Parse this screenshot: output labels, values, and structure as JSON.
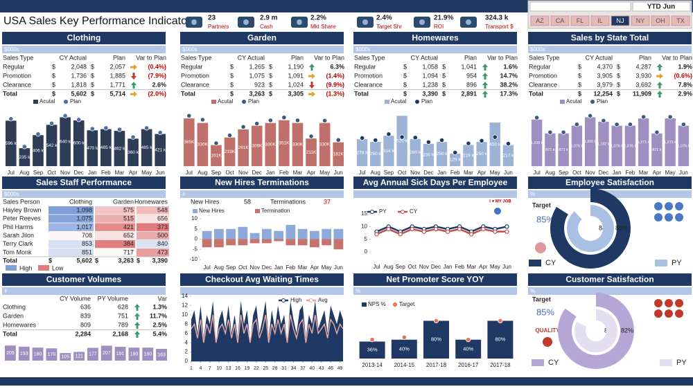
{
  "header": {
    "title": "USA Sales Key Performance Indicators"
  },
  "kpis": [
    {
      "value": "23",
      "label": "Partners"
    },
    {
      "value": "2.9 m",
      "label": "Cash"
    },
    {
      "value": "2.2%",
      "label": "Mkt Share"
    },
    {
      "value": "2.4%",
      "label": "Target Shr"
    },
    {
      "value": "21.9%",
      "label": "ROI"
    },
    {
      "value": "324.3 k",
      "label": "Transport $"
    }
  ],
  "slicer": {
    "period": "YTD Jun",
    "states": [
      "AZ",
      "CA",
      "FL",
      "IL",
      "NJ",
      "NY",
      "OH",
      "TX"
    ],
    "selected": "NJ"
  },
  "panels": [
    {
      "title": "Clothing",
      "unit": "$000s"
    },
    {
      "title": "Garden",
      "unit": "$000s"
    },
    {
      "title": "Homewares",
      "unit": "$000s"
    },
    {
      "title": "Sales by State Total",
      "unit": "$000s"
    },
    {
      "title": "Sales Staff Performance",
      "unit": "$000s"
    },
    {
      "title": "New Hires Terminations",
      "unit": "#"
    },
    {
      "title": "Avg Annual Sick Days Per Employee",
      "badge": "I ♥ MY JOB"
    },
    {
      "title": "Employee Satisfaction",
      "unit": "%"
    },
    {
      "title": "Customer Volumes",
      "unit": "#"
    },
    {
      "title": "Checkout Avg Waiting Times"
    },
    {
      "title": "Net Promoter Score YOY",
      "unit": "%"
    },
    {
      "title": "Customer Satisfaction",
      "unit": "%"
    }
  ],
  "sales_tables": [
    {
      "currency": "$",
      "columns": [
        "Sales Type",
        "CY Actual",
        "Plan",
        "Var to Plan"
      ],
      "rows": [
        [
          "Regular",
          "2,048",
          "2,057",
          "(0.4%)"
        ],
        [
          "Promotion",
          "1,736",
          "1,885",
          "(7.9%)"
        ],
        [
          "Clearance",
          "1,818",
          "1,771",
          "2.6%"
        ],
        [
          "Total",
          "5,602",
          "5,714",
          "(2.0%)"
        ]
      ]
    },
    {
      "currency": "$",
      "columns": [
        "Sales Type",
        "CY Actual",
        "Plan",
        "Var to Plan"
      ],
      "rows": [
        [
          "Regular",
          "1,265",
          "1,190",
          "6.3%"
        ],
        [
          "Promotion",
          "1,075",
          "1,091",
          "(1.4%)"
        ],
        [
          "Clearance",
          "923",
          "1,024",
          "(9.9%)"
        ],
        [
          "Total",
          "3,263",
          "3,305",
          "(1.3%)"
        ]
      ]
    },
    {
      "currency": "$",
      "columns": [
        "Sales Type",
        "CY Actual",
        "Plan",
        "Var to Plan"
      ],
      "rows": [
        [
          "Regular",
          "1,058",
          "1,041",
          "1.6%"
        ],
        [
          "Promotion",
          "1,094",
          "954",
          "14.7%"
        ],
        [
          "Clearance",
          "1,238",
          "896",
          "38.2%"
        ],
        [
          "Total",
          "3,390",
          "2,891",
          "17.3%"
        ]
      ]
    },
    {
      "currency": "$",
      "columns": [
        "Sales Type",
        "CY Actual",
        "Plan",
        "Var to Plan"
      ],
      "rows": [
        [
          "Regular",
          "4,370",
          "4,287",
          "1.9%"
        ],
        [
          "Promotion",
          "3,905",
          "3,930",
          "(0.6%)"
        ],
        [
          "Clearance",
          "3,979",
          "3,692",
          "7.8%"
        ],
        [
          "Total",
          "12,254",
          "11,909",
          "2.9%"
        ]
      ]
    }
  ],
  "staff_table": {
    "currency": "$",
    "columns": [
      "Sales Person",
      "Clothing",
      "Garden",
      "Homewares"
    ],
    "rows": [
      [
        "Hayley Brown",
        "1,098",
        "575",
        "548"
      ],
      [
        "Peter Reeves",
        "1,075",
        "515",
        "656"
      ],
      [
        "Phil Harms",
        "1,017",
        "421",
        "373"
      ],
      [
        "Sarah Jilon",
        "708",
        "652",
        "500"
      ],
      [
        "Terry Clark",
        "853",
        "384",
        "840"
      ],
      [
        "Tom Monk",
        "851",
        "717",
        "473"
      ]
    ],
    "total": [
      "Total",
      "5,602",
      "3,263",
      "3,390"
    ],
    "legend": [
      "High",
      "Low"
    ],
    "colors": {
      "high": "#7f9fd8",
      "low": "#e07b7b"
    }
  },
  "hires_summary": [
    {
      "label": "New Hires",
      "value": 58
    },
    {
      "label": "Terminations",
      "value": 37
    }
  ],
  "employee_satisfaction": {
    "target_label": "Target",
    "target": "85%"
  },
  "volumes_table": {
    "columns": [
      "CY Volume",
      "PY Volume",
      "Var"
    ],
    "rows": [
      [
        "Clothing",
        "636",
        "628",
        "1.3%"
      ],
      [
        "Garden",
        "839",
        "751",
        "11.7%"
      ],
      [
        "Homewares",
        "809",
        "789",
        "2.5%"
      ],
      [
        "Total",
        "2,284",
        "2,168",
        "5.4%"
      ]
    ]
  },
  "customer_satisfaction": {
    "target_label": "Target",
    "target": "85%",
    "badge": "QUALITY"
  },
  "chart_data": [
    {
      "type": "bar",
      "categories": [
        "Jul",
        "Aug",
        "Sep",
        "Oct",
        "Nov",
        "Dec",
        "Jan",
        "Feb",
        "Mar",
        "Apr",
        "May",
        "Jun"
      ],
      "series": [
        {
          "name": "Acutal",
          "color": "#2e3d55",
          "values": [
            596,
            235,
            406,
            542,
            640,
            600,
            470,
            485,
            462,
            360,
            485,
            421
          ],
          "value_labels": [
            "596 k",
            "235 k",
            "406 k",
            "542 k",
            "640 k",
            "600 k",
            "470 k",
            "485 k",
            "462 k",
            "360 k",
            "485 k",
            "421 k"
          ]
        },
        {
          "name": "Plan",
          "color": "#4a6fa5",
          "marker": "dot",
          "values": [
            620,
            255,
            420,
            560,
            660,
            610,
            490,
            500,
            480,
            380,
            500,
            440
          ]
        }
      ]
    },
    {
      "type": "bar",
      "categories": [
        "Jul",
        "Aug",
        "Sep",
        "Oct",
        "Nov",
        "Dec",
        "Jan",
        "Feb",
        "Mar",
        "Apr",
        "May",
        "Jun"
      ],
      "series": [
        {
          "name": "Acutal",
          "color": "#c0706a",
          "values": [
            365,
            330,
            161,
            219,
            281,
            309,
            330,
            351,
            330,
            211,
            330,
            182
          ],
          "value_labels": [
            "365K",
            "330K",
            "161K",
            "219K",
            "281K",
            "309K",
            "330K",
            "351K",
            "330K",
            "211K",
            "330K",
            "182K"
          ]
        },
        {
          "name": "Plan",
          "color": "#3d5a80",
          "marker": "dot",
          "values": [
            385,
            355,
            175,
            235,
            300,
            325,
            350,
            372,
            350,
            228,
            348,
            200
          ]
        }
      ]
    },
    {
      "type": "bar",
      "categories": [
        "Jul",
        "Aug",
        "Sep",
        "Oct",
        "Nov",
        "Dec",
        "Jan",
        "Feb",
        "Mar",
        "Apr",
        "May",
        "Jun"
      ],
      "series": [
        {
          "name": "Acutal",
          "color": "#9db3d6",
          "values": [
            278,
            250,
            314,
            520,
            280,
            230,
            250,
            129,
            219,
            250,
            450,
            217
          ],
          "value_labels": [
            "278 k",
            "250 k",
            "314 k",
            "520 k",
            "280 k",
            "230 k",
            "250 k",
            "129 k",
            "219 k",
            "250 k",
            "450 k",
            "217 k"
          ]
        },
        {
          "name": "Plan",
          "color": "#1f3864",
          "marker": "dot",
          "values": [
            290,
            268,
            330,
            300,
            295,
            248,
            268,
            140,
            235,
            262,
            300,
            232
          ]
        }
      ]
    },
    {
      "type": "bar",
      "categories": [
        "Jul",
        "Aug",
        "Sep",
        "Oct",
        "Nov",
        "Dec",
        "Jan",
        "Feb",
        "Mar",
        "Apr",
        "May",
        "Jun"
      ],
      "series": [
        {
          "name": "Acutal",
          "color": "#9f8fc0",
          "values": [
            1239,
            871,
            871,
            1076,
            1300,
            1182,
            1076,
            1076,
            1271,
            871,
            1271,
            1076
          ],
          "value_labels": [
            "1,239 k",
            "871 k",
            "871 k",
            "1,076 k",
            "1,300 k",
            "1,182 k",
            "1,076 k",
            "1,076 k",
            "1,271 k",
            "871 k",
            "1,271 k",
            "1,076 k"
          ]
        },
        {
          "name": "Plan",
          "color": "#3d5a80",
          "marker": "dot",
          "values": [
            1290,
            900,
            900,
            1110,
            1340,
            1210,
            1110,
            1110,
            1310,
            900,
            1310,
            1110
          ]
        }
      ]
    },
    {
      "type": "bar",
      "categories": [
        "Jul",
        "Aug",
        "Sep",
        "Oct",
        "Nov",
        "Dec",
        "Jan",
        "Feb",
        "Mar",
        "Apr",
        "May",
        "Jun"
      ],
      "ylim": [
        -10,
        10
      ],
      "yticks": [
        -10,
        -5,
        0,
        5,
        10
      ],
      "series": [
        {
          "name": "New Hires",
          "color": "#8eaadb",
          "values": [
            4,
            5,
            5,
            6,
            3,
            5,
            4,
            7,
            5,
            4,
            5,
            5
          ]
        },
        {
          "name": "Termination",
          "color": "#c9716d",
          "values": [
            -4,
            -4,
            -3,
            -3,
            -2,
            -2,
            -1,
            -3,
            -3,
            -4,
            -3,
            -5
          ]
        }
      ]
    },
    {
      "type": "line",
      "markers": true,
      "categories": [
        "Jul",
        "Aug",
        "Sep",
        "Oct",
        "Nov",
        "Dec",
        "Jan",
        "Feb",
        "Mar",
        "Apr",
        "May",
        "Jun"
      ],
      "ylim": [
        0,
        15
      ],
      "yticks": [
        0,
        5,
        10,
        15
      ],
      "series": [
        {
          "name": "PY",
          "color": "#1f3864",
          "values": [
            8,
            10,
            8,
            10,
            9,
            10,
            9,
            10,
            8,
            10,
            9,
            10
          ]
        },
        {
          "name": "CY",
          "color": "#c0504d",
          "values": [
            7,
            9,
            7,
            9,
            8,
            9,
            8,
            9,
            7,
            9,
            8,
            8
          ]
        }
      ]
    },
    {
      "type": "donut",
      "series": [
        {
          "name": "CY",
          "color": "#1f3864",
          "values": [
            84
          ],
          "value_labels": [
            "84%"
          ]
        },
        {
          "name": "PY",
          "color": "#a9c0e4",
          "values": [
            88
          ],
          "value_labels": [
            "88%"
          ]
        }
      ]
    },
    {
      "type": "bar",
      "color": "#9f8fc0",
      "values": [
        209,
        193,
        180,
        170,
        105,
        121,
        177,
        207,
        191,
        180,
        180,
        163
      ]
    },
    {
      "type": "line",
      "x": [
        1,
        2,
        3,
        4,
        5,
        6,
        7,
        8,
        9,
        10,
        11,
        12,
        13,
        14,
        15,
        16,
        17,
        18,
        19,
        20,
        21,
        22,
        23,
        24,
        25,
        26,
        27,
        28,
        29,
        30,
        31,
        32,
        33,
        34,
        35,
        36,
        37,
        38,
        39,
        40,
        41,
        42,
        43,
        44,
        45,
        46,
        47,
        48,
        49,
        50
      ],
      "xlim": [
        1,
        50
      ],
      "xticks": [
        1,
        4,
        7,
        10,
        13,
        16,
        19,
        22,
        25,
        28,
        31,
        34,
        37,
        40,
        43,
        46,
        49
      ],
      "ylim": [
        0,
        14
      ],
      "yticks": [
        0,
        2,
        4,
        6,
        8,
        10,
        12,
        14
      ],
      "series": [
        {
          "name": "High",
          "color": "#1f3864",
          "kind": "area",
          "values": [
            9,
            11,
            6,
            12,
            5,
            10,
            8,
            13,
            4,
            9,
            11,
            7,
            12,
            6,
            10,
            5,
            13,
            8,
            11,
            4,
            10,
            12,
            6,
            9,
            13,
            5,
            11,
            7,
            12,
            8,
            10,
            4,
            13,
            9,
            6,
            11,
            12,
            5,
            10,
            8,
            13,
            7,
            9,
            11,
            6,
            12,
            10,
            8,
            11,
            9
          ]
        },
        {
          "name": "Avg",
          "color": "#e6a6a4",
          "values": [
            7,
            8,
            5,
            9,
            4,
            8,
            6,
            10,
            4,
            7,
            8,
            6,
            9,
            5,
            8,
            4,
            10,
            6,
            8,
            4,
            8,
            9,
            5,
            7,
            10,
            4,
            8,
            6,
            9,
            6,
            8,
            4,
            10,
            7,
            5,
            8,
            9,
            4,
            8,
            6,
            10,
            6,
            7,
            8,
            5,
            9,
            8,
            6,
            8,
            7
          ]
        }
      ]
    },
    {
      "type": "bar",
      "categories": [
        "2013-14",
        "2014-15",
        "2017-18",
        "2016-17",
        "2017-18"
      ],
      "series": [
        {
          "name": "NPS %",
          "color": "#1f3864",
          "values": [
            36,
            40,
            80,
            40,
            80
          ],
          "value_labels": [
            "36%",
            "40%",
            "80%",
            "40%",
            "80%"
          ]
        },
        {
          "name": "Target",
          "color": "#e8735a",
          "marker": "dot",
          "values": [
            40,
            45,
            80,
            40,
            80
          ]
        }
      ]
    },
    {
      "type": "donut",
      "series": [
        {
          "name": "CY",
          "color": "#b4a7d6",
          "values": [
            85
          ],
          "value_labels": [
            "85%"
          ]
        },
        {
          "name": "PY",
          "color": "#e4dff0",
          "values": [
            82
          ],
          "value_labels": [
            "82%"
          ]
        }
      ]
    }
  ]
}
